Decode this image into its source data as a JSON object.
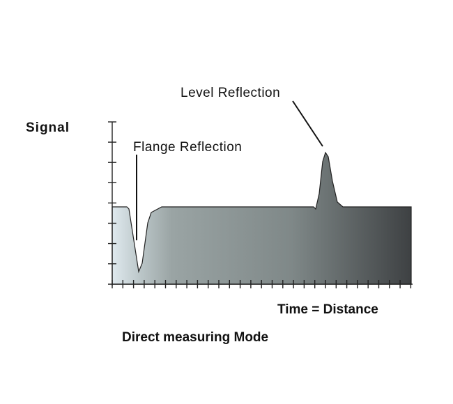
{
  "diagram": {
    "y_axis_label": "Signal",
    "x_axis_label": "Time = Distance",
    "caption": "Direct measuring Mode",
    "annotations": {
      "flange": "Flange Reflection",
      "level": "Level Reflection"
    },
    "colors": {
      "fill_start": "#dfe9ee",
      "fill_mid": "#8a9496",
      "fill_end": "#3e4143",
      "ink": "#111111"
    }
  }
}
